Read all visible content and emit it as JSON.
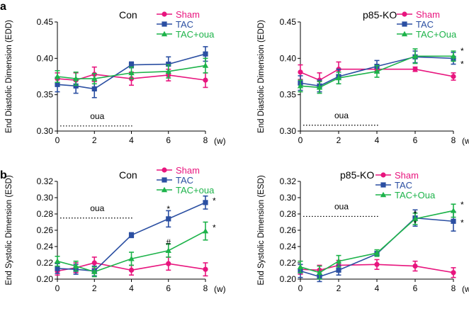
{
  "colors": {
    "sham": "#e8157e",
    "tac": "#2b4fa2",
    "tacoua": "#1db34a"
  },
  "chart_data": [
    {
      "type": "line",
      "panel_letter": "a",
      "group_label": "Con",
      "ylabel": "End Diastolic Dimension (EDD)",
      "xunit": "(w)",
      "x": [
        0,
        1,
        2,
        4,
        6,
        8
      ],
      "xticks": [
        "0",
        "2",
        "4",
        "6",
        "8"
      ],
      "ylim": [
        0.3,
        0.45
      ],
      "yticks": [
        "0.30",
        "0.35",
        "0.40",
        "0.45"
      ],
      "oua_label": "oua",
      "oua_range": [
        0,
        4
      ],
      "oua_level": 0.307,
      "legend": [
        "Sham",
        "TAC",
        "TAC+oua"
      ],
      "series": [
        {
          "name": "Sham",
          "values": [
            0.372,
            0.37,
            0.378,
            0.372,
            0.377,
            0.37
          ],
          "err": [
            0.008,
            0.01,
            0.01,
            0.009,
            0.008,
            0.01
          ]
        },
        {
          "name": "TAC",
          "values": [
            0.364,
            0.362,
            0.358,
            0.391,
            0.392,
            0.406
          ],
          "err": [
            0.01,
            0.01,
            0.012,
            0.004,
            0.01,
            0.01
          ]
        },
        {
          "name": "TAC+oua",
          "values": [
            0.375,
            0.372,
            0.372,
            0.38,
            0.382,
            0.39
          ],
          "err": [
            0.008,
            0.009,
            0.007,
            0.008,
            0.009,
            0.01
          ]
        }
      ]
    },
    {
      "type": "line",
      "panel_letter": "",
      "group_label": "p85-KO",
      "ylabel": "End Diastolic Dimension (EDD)",
      "xunit": "(w)",
      "x": [
        0,
        1,
        2,
        4,
        6,
        8
      ],
      "xticks": [
        "0",
        "2",
        "4",
        "6",
        "8"
      ],
      "ylim": [
        0.3,
        0.45
      ],
      "yticks": [
        "0.30",
        "0.35",
        "0.40",
        "0.45"
      ],
      "oua_label": "oua",
      "oua_range": [
        0,
        4
      ],
      "oua_level": 0.308,
      "legend": [
        "Sham",
        "TAC",
        "TAC+Oua"
      ],
      "series": [
        {
          "name": "Sham",
          "values": [
            0.381,
            0.37,
            0.385,
            0.385,
            0.385,
            0.375
          ],
          "err": [
            0.01,
            0.01,
            0.01,
            0.003,
            0.003,
            0.005
          ]
        },
        {
          "name": "TAC",
          "values": [
            0.366,
            0.362,
            0.375,
            0.389,
            0.402,
            0.4
          ],
          "err": [
            0.01,
            0.008,
            0.01,
            0.008,
            0.008,
            0.008
          ]
        },
        {
          "name": "TAC+Oua",
          "values": [
            0.362,
            0.36,
            0.373,
            0.382,
            0.403,
            0.403
          ],
          "err": [
            0.008,
            0.008,
            0.008,
            0.008,
            0.01,
            0.007
          ]
        }
      ],
      "annotations": [
        {
          "text": "*",
          "x": 8,
          "y": 0.411
        },
        {
          "text": "*",
          "x": 8,
          "y": 0.393
        }
      ]
    },
    {
      "type": "line",
      "panel_letter": "b",
      "group_label": "Con",
      "ylabel": "End Systolic Dimension (ESD)",
      "xunit": "(w)",
      "x": [
        0,
        1,
        2,
        4,
        6,
        8
      ],
      "xticks": [
        "0",
        "2",
        "4",
        "6",
        "8"
      ],
      "ylim": [
        0.2,
        0.32
      ],
      "yticks": [
        "0.20",
        "0.22",
        "0.24",
        "0.26",
        "0.28",
        "0.30",
        "0.32"
      ],
      "oua_label": "oua",
      "oua_range": [
        0,
        4
      ],
      "oua_level": 0.275,
      "legend": [
        "Sham",
        "TAC",
        "TAC+oua"
      ],
      "series": [
        {
          "name": "Sham",
          "values": [
            0.21,
            0.214,
            0.22,
            0.211,
            0.219,
            0.212
          ],
          "err": [
            0.005,
            0.006,
            0.007,
            0.006,
            0.008,
            0.008
          ]
        },
        {
          "name": "TAC",
          "values": [
            0.213,
            0.212,
            0.21,
            0.254,
            0.274,
            0.294
          ],
          "err": [
            0.006,
            0.006,
            0.006,
            0.003,
            0.01,
            0.008
          ]
        },
        {
          "name": "TAC+oua",
          "values": [
            0.222,
            0.216,
            0.209,
            0.225,
            0.235,
            0.259
          ],
          "err": [
            0.006,
            0.006,
            0.006,
            0.008,
            0.008,
            0.011
          ]
        }
      ],
      "annotations": [
        {
          "text": "*",
          "x": 6,
          "y": 0.287
        },
        {
          "text": "#",
          "x": 6,
          "y": 0.246
        },
        {
          "text": "*",
          "x": 8,
          "y": 0.297
        },
        {
          "text": "*",
          "x": 8,
          "y": 0.264
        }
      ]
    },
    {
      "type": "line",
      "panel_letter": "",
      "group_label": "p85-KO",
      "ylabel": "End Systolic Dimension (ESD)",
      "xunit": "(w)",
      "x": [
        0,
        1,
        2,
        4,
        6,
        8
      ],
      "xticks": [
        "0",
        "2",
        "4",
        "6",
        "8"
      ],
      "ylim": [
        0.2,
        0.32
      ],
      "yticks": [
        "0.20",
        "0.22",
        "0.24",
        "0.26",
        "0.28",
        "0.30",
        "0.32"
      ],
      "oua_label": "oua",
      "oua_range": [
        0,
        4
      ],
      "oua_level": 0.277,
      "legend": [
        "Sham",
        "TAC",
        "TAC+Oua"
      ],
      "series": [
        {
          "name": "Sham",
          "values": [
            0.212,
            0.211,
            0.217,
            0.218,
            0.216,
            0.208
          ],
          "err": [
            0.006,
            0.006,
            0.006,
            0.006,
            0.006,
            0.006
          ]
        },
        {
          "name": "TAC",
          "values": [
            0.21,
            0.203,
            0.211,
            0.231,
            0.275,
            0.271
          ],
          "err": [
            0.008,
            0.006,
            0.006,
            0.003,
            0.01,
            0.012
          ]
        },
        {
          "name": "TAC+Oua",
          "values": [
            0.215,
            0.208,
            0.222,
            0.232,
            0.274,
            0.284
          ],
          "err": [
            0.007,
            0.008,
            0.007,
            0.004,
            0.007,
            0.008
          ]
        }
      ],
      "annotations": [
        {
          "text": "*",
          "x": 6,
          "y": 0.281
        },
        {
          "text": "*",
          "x": 6,
          "y": 0.269
        },
        {
          "text": "*",
          "x": 8,
          "y": 0.292
        },
        {
          "text": "*",
          "x": 8,
          "y": 0.27
        }
      ]
    }
  ]
}
